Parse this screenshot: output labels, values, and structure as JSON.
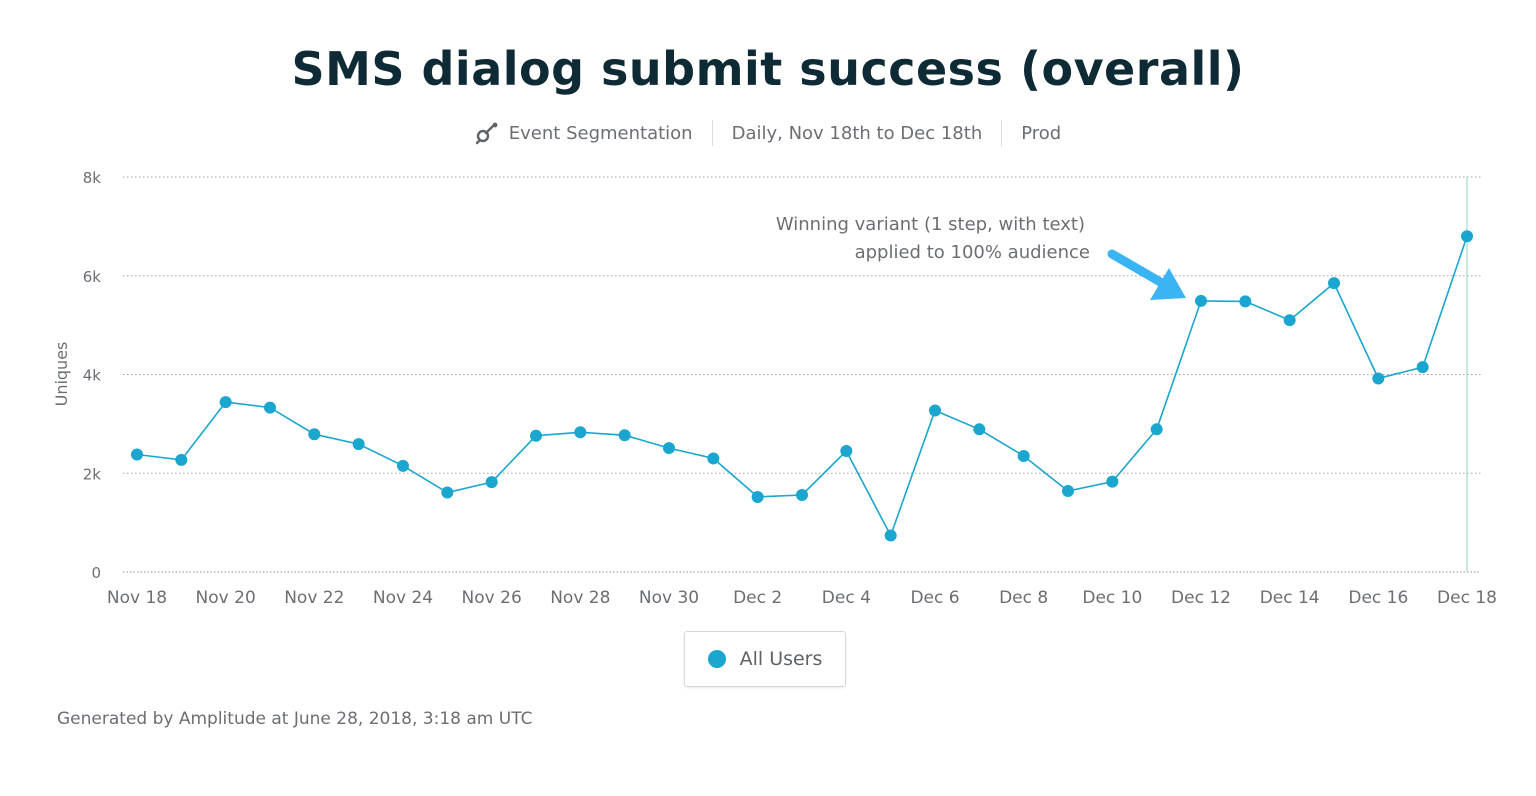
{
  "header": {
    "title": "SMS dialog submit success (overall)",
    "segmentation_icon": "event-segmentation-icon",
    "segmentation_label": "Event Segmentation",
    "date_range": "Daily, Nov 18th to Dec 18th",
    "environment": "Prod"
  },
  "chart_data": {
    "type": "line",
    "ylabel": "Uniques",
    "xlabel": "",
    "ylim": [
      0,
      8000
    ],
    "yticks": [
      0,
      2000,
      4000,
      6000,
      8000
    ],
    "ytick_labels": [
      "0",
      "2k",
      "4k",
      "6k",
      "8k"
    ],
    "grid": true,
    "x": [
      "Nov 18",
      "Nov 19",
      "Nov 20",
      "Nov 21",
      "Nov 22",
      "Nov 23",
      "Nov 24",
      "Nov 25",
      "Nov 26",
      "Nov 27",
      "Nov 28",
      "Nov 29",
      "Nov 30",
      "Dec 1",
      "Dec 2",
      "Dec 3",
      "Dec 4",
      "Dec 5",
      "Dec 6",
      "Dec 7",
      "Dec 8",
      "Dec 9",
      "Dec 10",
      "Dec 11",
      "Dec 12",
      "Dec 13",
      "Dec 14",
      "Dec 15",
      "Dec 16",
      "Dec 17",
      "Dec 18"
    ],
    "xtick_labels": [
      "Nov 18",
      "Nov 20",
      "Nov 22",
      "Nov 24",
      "Nov 26",
      "Nov 28",
      "Nov 30",
      "Dec 2",
      "Dec 4",
      "Dec 6",
      "Dec 8",
      "Dec 10",
      "Dec 12",
      "Dec 14",
      "Dec 16",
      "Dec 18"
    ],
    "series": [
      {
        "name": "All Users",
        "color": "#1aa6cf",
        "values": [
          2380,
          2270,
          3440,
          3330,
          2790,
          2590,
          2150,
          1610,
          1820,
          2760,
          2830,
          2770,
          2510,
          2300,
          1520,
          1560,
          2450,
          740,
          3270,
          2890,
          2350,
          1640,
          1830,
          2890,
          5490,
          5480,
          5100,
          5850,
          3920,
          4150,
          6800
        ]
      }
    ],
    "annotation": {
      "line1": "Winning variant (1 step, with text)",
      "line2": "applied to 100% audience",
      "arrow_color": "#3ab4f2",
      "points_to": "Dec 12"
    },
    "legend": {
      "placement": "bottom-center",
      "label": "All Users"
    }
  },
  "footer": {
    "text": "Generated by Amplitude at June 28, 2018, 3:18 am UTC"
  }
}
